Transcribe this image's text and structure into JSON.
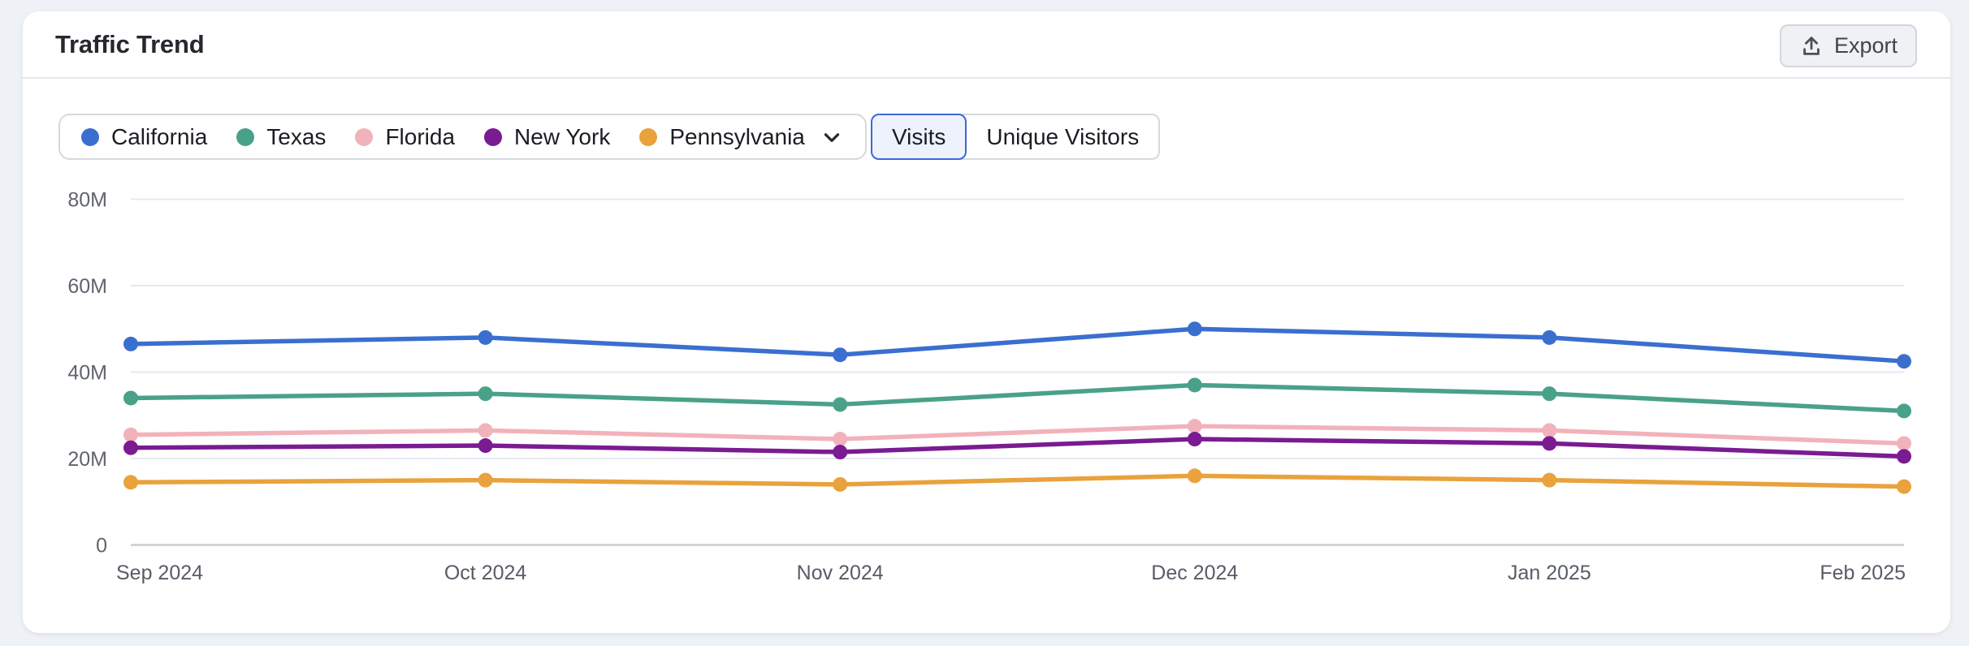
{
  "header": {
    "title": "Traffic Trend",
    "export_label": "Export"
  },
  "toggle": {
    "options": [
      {
        "label": "Visits",
        "selected": true
      },
      {
        "label": "Unique Visitors",
        "selected": false
      }
    ]
  },
  "legend": {
    "dropdown_icon": "chevron-down"
  },
  "colors": {
    "accent_blue": "#3e68d8",
    "selected_segment_bg": "#edf2fd",
    "gridline": "#e7e9ef",
    "zero_line": "#c9ccd4",
    "axis_text": "#60646e",
    "page_bg": "#eef1f6"
  },
  "chart_data": {
    "type": "line",
    "title": "Traffic Trend",
    "x": [
      "Sep 2024",
      "Oct 2024",
      "Nov 2024",
      "Dec 2024",
      "Jan 2025",
      "Feb 2025"
    ],
    "series": [
      {
        "name": "California",
        "color": "#3a6fd0",
        "values": [
          46.5,
          48,
          44,
          50,
          48,
          42.5
        ]
      },
      {
        "name": "Texas",
        "color": "#4aa189",
        "values": [
          34,
          35,
          32.5,
          37,
          35,
          31
        ]
      },
      {
        "name": "Florida",
        "color": "#f2b2bb",
        "values": [
          25.5,
          26.5,
          24.5,
          27.5,
          26.5,
          23.5
        ]
      },
      {
        "name": "New York",
        "color": "#7a1b92",
        "values": [
          22.5,
          23,
          21.5,
          24.5,
          23.5,
          20.5
        ]
      },
      {
        "name": "Pennsylvania",
        "color": "#e9a23c",
        "values": [
          14.5,
          15,
          14,
          16,
          15,
          13.5
        ]
      }
    ],
    "unit": "M",
    "ylim": [
      0,
      80
    ],
    "ytick_values": [
      0,
      20,
      40,
      60,
      80
    ],
    "yticks": [
      "0",
      "20M",
      "40M",
      "60M",
      "80M"
    ],
    "grid": true,
    "legend_position": "top-left"
  }
}
